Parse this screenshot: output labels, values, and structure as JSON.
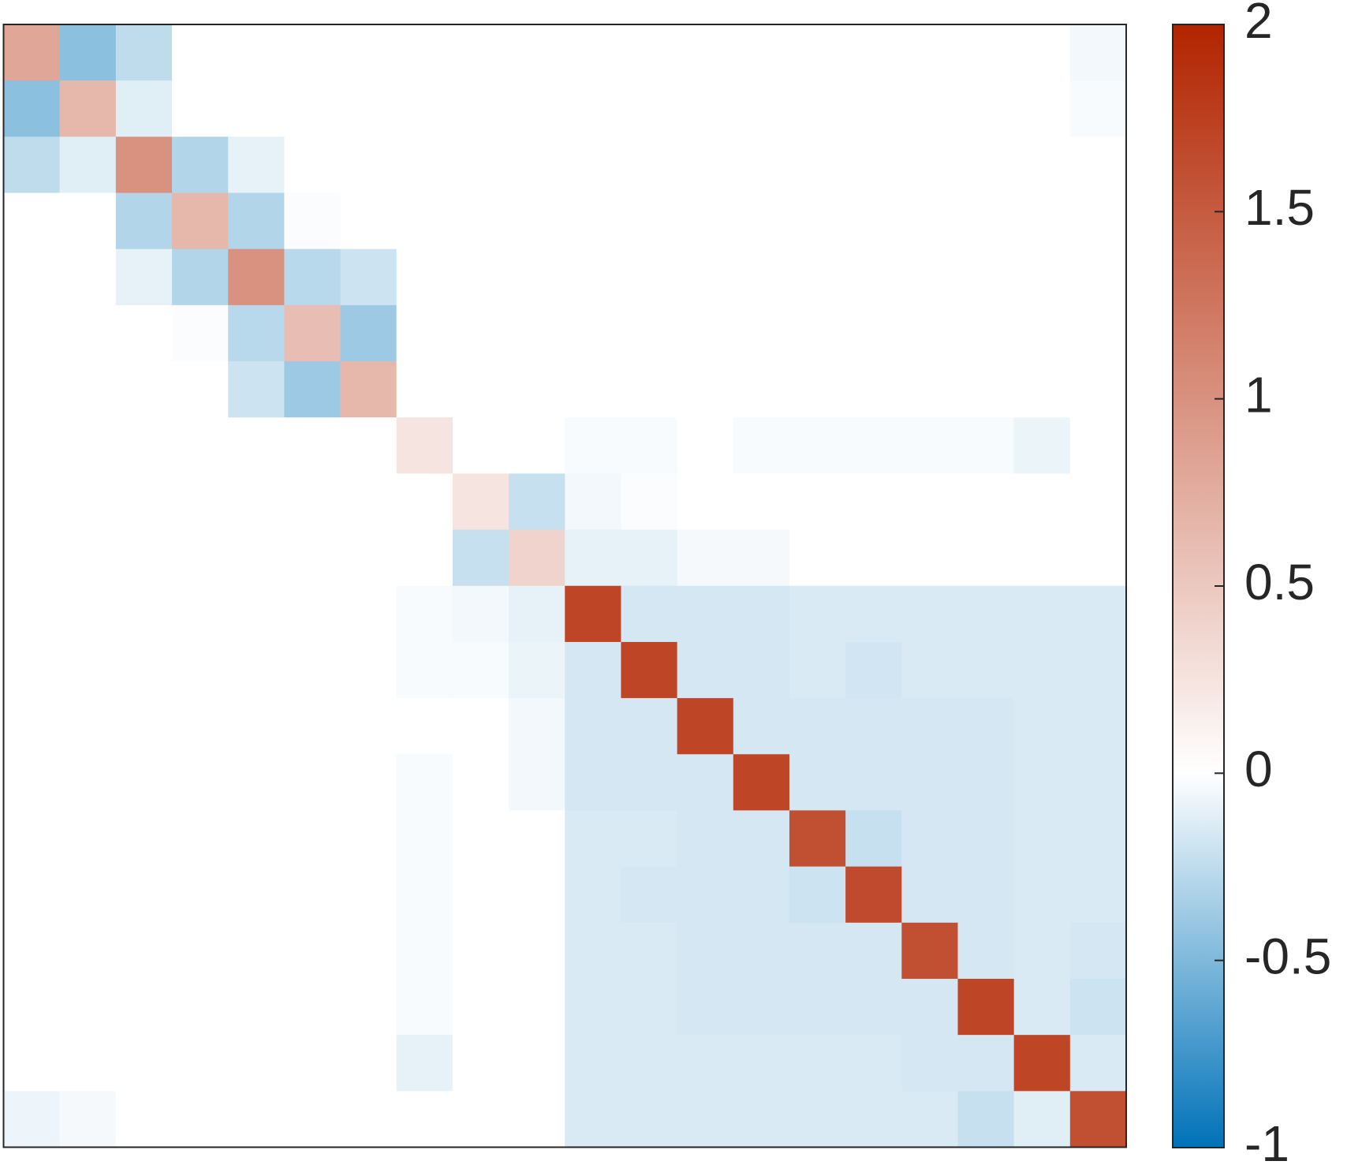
{
  "chart_data": {
    "type": "heatmap",
    "z": [
      [
        0.8,
        -0.45,
        -0.25,
        0,
        0,
        0,
        0,
        0,
        0,
        0,
        0,
        0,
        0,
        0,
        0,
        0,
        0,
        0,
        0,
        -0.05
      ],
      [
        -0.45,
        0.65,
        -0.12,
        0,
        0,
        0,
        0,
        0,
        0,
        0,
        0,
        0,
        0,
        0,
        0,
        0,
        0,
        0,
        0,
        -0.03
      ],
      [
        -0.25,
        -0.12,
        1.0,
        -0.3,
        -0.1,
        0,
        0,
        0,
        0,
        0,
        0,
        0,
        0,
        0,
        0,
        0,
        0,
        0,
        0,
        0
      ],
      [
        0,
        0,
        -0.3,
        0.65,
        -0.3,
        -0.02,
        0,
        0,
        0,
        0,
        0,
        0,
        0,
        0,
        0,
        0,
        0,
        0,
        0,
        0
      ],
      [
        0,
        0,
        -0.1,
        -0.3,
        1.0,
        -0.28,
        -0.2,
        0,
        0,
        0,
        0,
        0,
        0,
        0,
        0,
        0,
        0,
        0,
        0,
        0
      ],
      [
        0,
        0,
        0,
        -0.02,
        -0.28,
        0.6,
        -0.38,
        0,
        0,
        0,
        0,
        0,
        0,
        0,
        0,
        0,
        0,
        0,
        0,
        0
      ],
      [
        0,
        0,
        0,
        0,
        -0.2,
        -0.38,
        0.65,
        0,
        0,
        0,
        0,
        0,
        0,
        0,
        0,
        0,
        0,
        0,
        0,
        0
      ],
      [
        0,
        0,
        0,
        0,
        0,
        0,
        0,
        0.25,
        0,
        0,
        -0.03,
        -0.03,
        0,
        -0.03,
        -0.03,
        -0.03,
        -0.03,
        -0.03,
        -0.08,
        0
      ],
      [
        0,
        0,
        0,
        0,
        0,
        0,
        0,
        0,
        0.25,
        -0.22,
        -0.05,
        -0.02,
        0,
        0,
        0,
        0,
        0,
        0,
        0,
        0
      ],
      [
        0,
        0,
        0,
        0,
        0,
        0,
        0,
        0,
        -0.22,
        0.4,
        -0.1,
        -0.1,
        -0.04,
        -0.04,
        0,
        0,
        0,
        0,
        0,
        0
      ],
      [
        0,
        0,
        0,
        0,
        0,
        0,
        0,
        -0.03,
        -0.05,
        -0.1,
        1.7,
        -0.17,
        -0.17,
        -0.17,
        -0.15,
        -0.15,
        -0.15,
        -0.15,
        -0.15,
        -0.15
      ],
      [
        0,
        0,
        0,
        0,
        0,
        0,
        0,
        -0.03,
        -0.03,
        -0.08,
        -0.17,
        1.7,
        -0.17,
        -0.17,
        -0.15,
        -0.18,
        -0.15,
        -0.15,
        -0.15,
        -0.15
      ],
      [
        0,
        0,
        0,
        0,
        0,
        0,
        0,
        0,
        0,
        -0.05,
        -0.17,
        -0.17,
        1.7,
        -0.17,
        -0.17,
        -0.17,
        -0.17,
        -0.17,
        -0.15,
        -0.15
      ],
      [
        0,
        0,
        0,
        0,
        0,
        0,
        0,
        -0.03,
        0,
        -0.05,
        -0.17,
        -0.17,
        -0.17,
        1.7,
        -0.17,
        -0.17,
        -0.17,
        -0.17,
        -0.15,
        -0.15
      ],
      [
        0,
        0,
        0,
        0,
        0,
        0,
        0,
        -0.03,
        0,
        0,
        -0.15,
        -0.15,
        -0.17,
        -0.17,
        1.6,
        -0.22,
        -0.17,
        -0.17,
        -0.15,
        -0.15
      ],
      [
        0,
        0,
        0,
        0,
        0,
        0,
        0,
        -0.03,
        0,
        0,
        -0.15,
        -0.17,
        -0.17,
        -0.17,
        -0.2,
        1.65,
        -0.17,
        -0.17,
        -0.15,
        -0.15
      ],
      [
        0,
        0,
        0,
        0,
        0,
        0,
        0,
        -0.03,
        0,
        0,
        -0.15,
        -0.15,
        -0.17,
        -0.17,
        -0.17,
        -0.17,
        1.6,
        -0.17,
        -0.15,
        -0.17
      ],
      [
        0,
        0,
        0,
        0,
        0,
        0,
        0,
        -0.03,
        0,
        0,
        -0.15,
        -0.15,
        -0.17,
        -0.17,
        -0.17,
        -0.17,
        -0.17,
        1.7,
        -0.15,
        -0.2
      ],
      [
        0,
        0,
        0,
        0,
        0,
        0,
        0,
        -0.1,
        0,
        0,
        -0.15,
        -0.15,
        -0.15,
        -0.15,
        -0.15,
        -0.15,
        -0.17,
        -0.17,
        1.7,
        -0.15
      ],
      [
        -0.07,
        -0.04,
        0,
        0,
        0,
        0,
        0,
        0,
        0,
        0,
        -0.15,
        -0.15,
        -0.15,
        -0.15,
        -0.15,
        -0.15,
        -0.15,
        -0.22,
        -0.12,
        1.6
      ]
    ],
    "zlim": [
      -1,
      2
    ],
    "colorbar_ticks": [
      -1,
      -0.5,
      0,
      0.5,
      1,
      1.5,
      2
    ],
    "colormap": [
      {
        "value": -1,
        "color": "#0072b8"
      },
      {
        "value": 0,
        "color": "#ffffff"
      },
      {
        "value": 2,
        "color": "#b22400"
      }
    ]
  }
}
